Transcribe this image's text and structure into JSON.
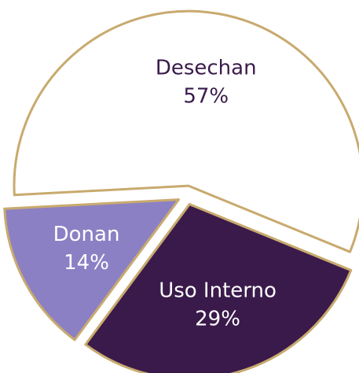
{
  "chart_data": {
    "type": "pie",
    "categories": [
      "Desechan",
      "Uso Interno",
      "Donan"
    ],
    "values": [
      57,
      29,
      14
    ],
    "value_labels": [
      "57%",
      "29%",
      "14%"
    ],
    "colors": [
      "#ffffff",
      "#3a1a4b",
      "#8c80c4"
    ],
    "label_colors": [
      "#3a1a4b",
      "#ffffff",
      "#ffffff"
    ],
    "edge_color": "#c8aa6e"
  }
}
